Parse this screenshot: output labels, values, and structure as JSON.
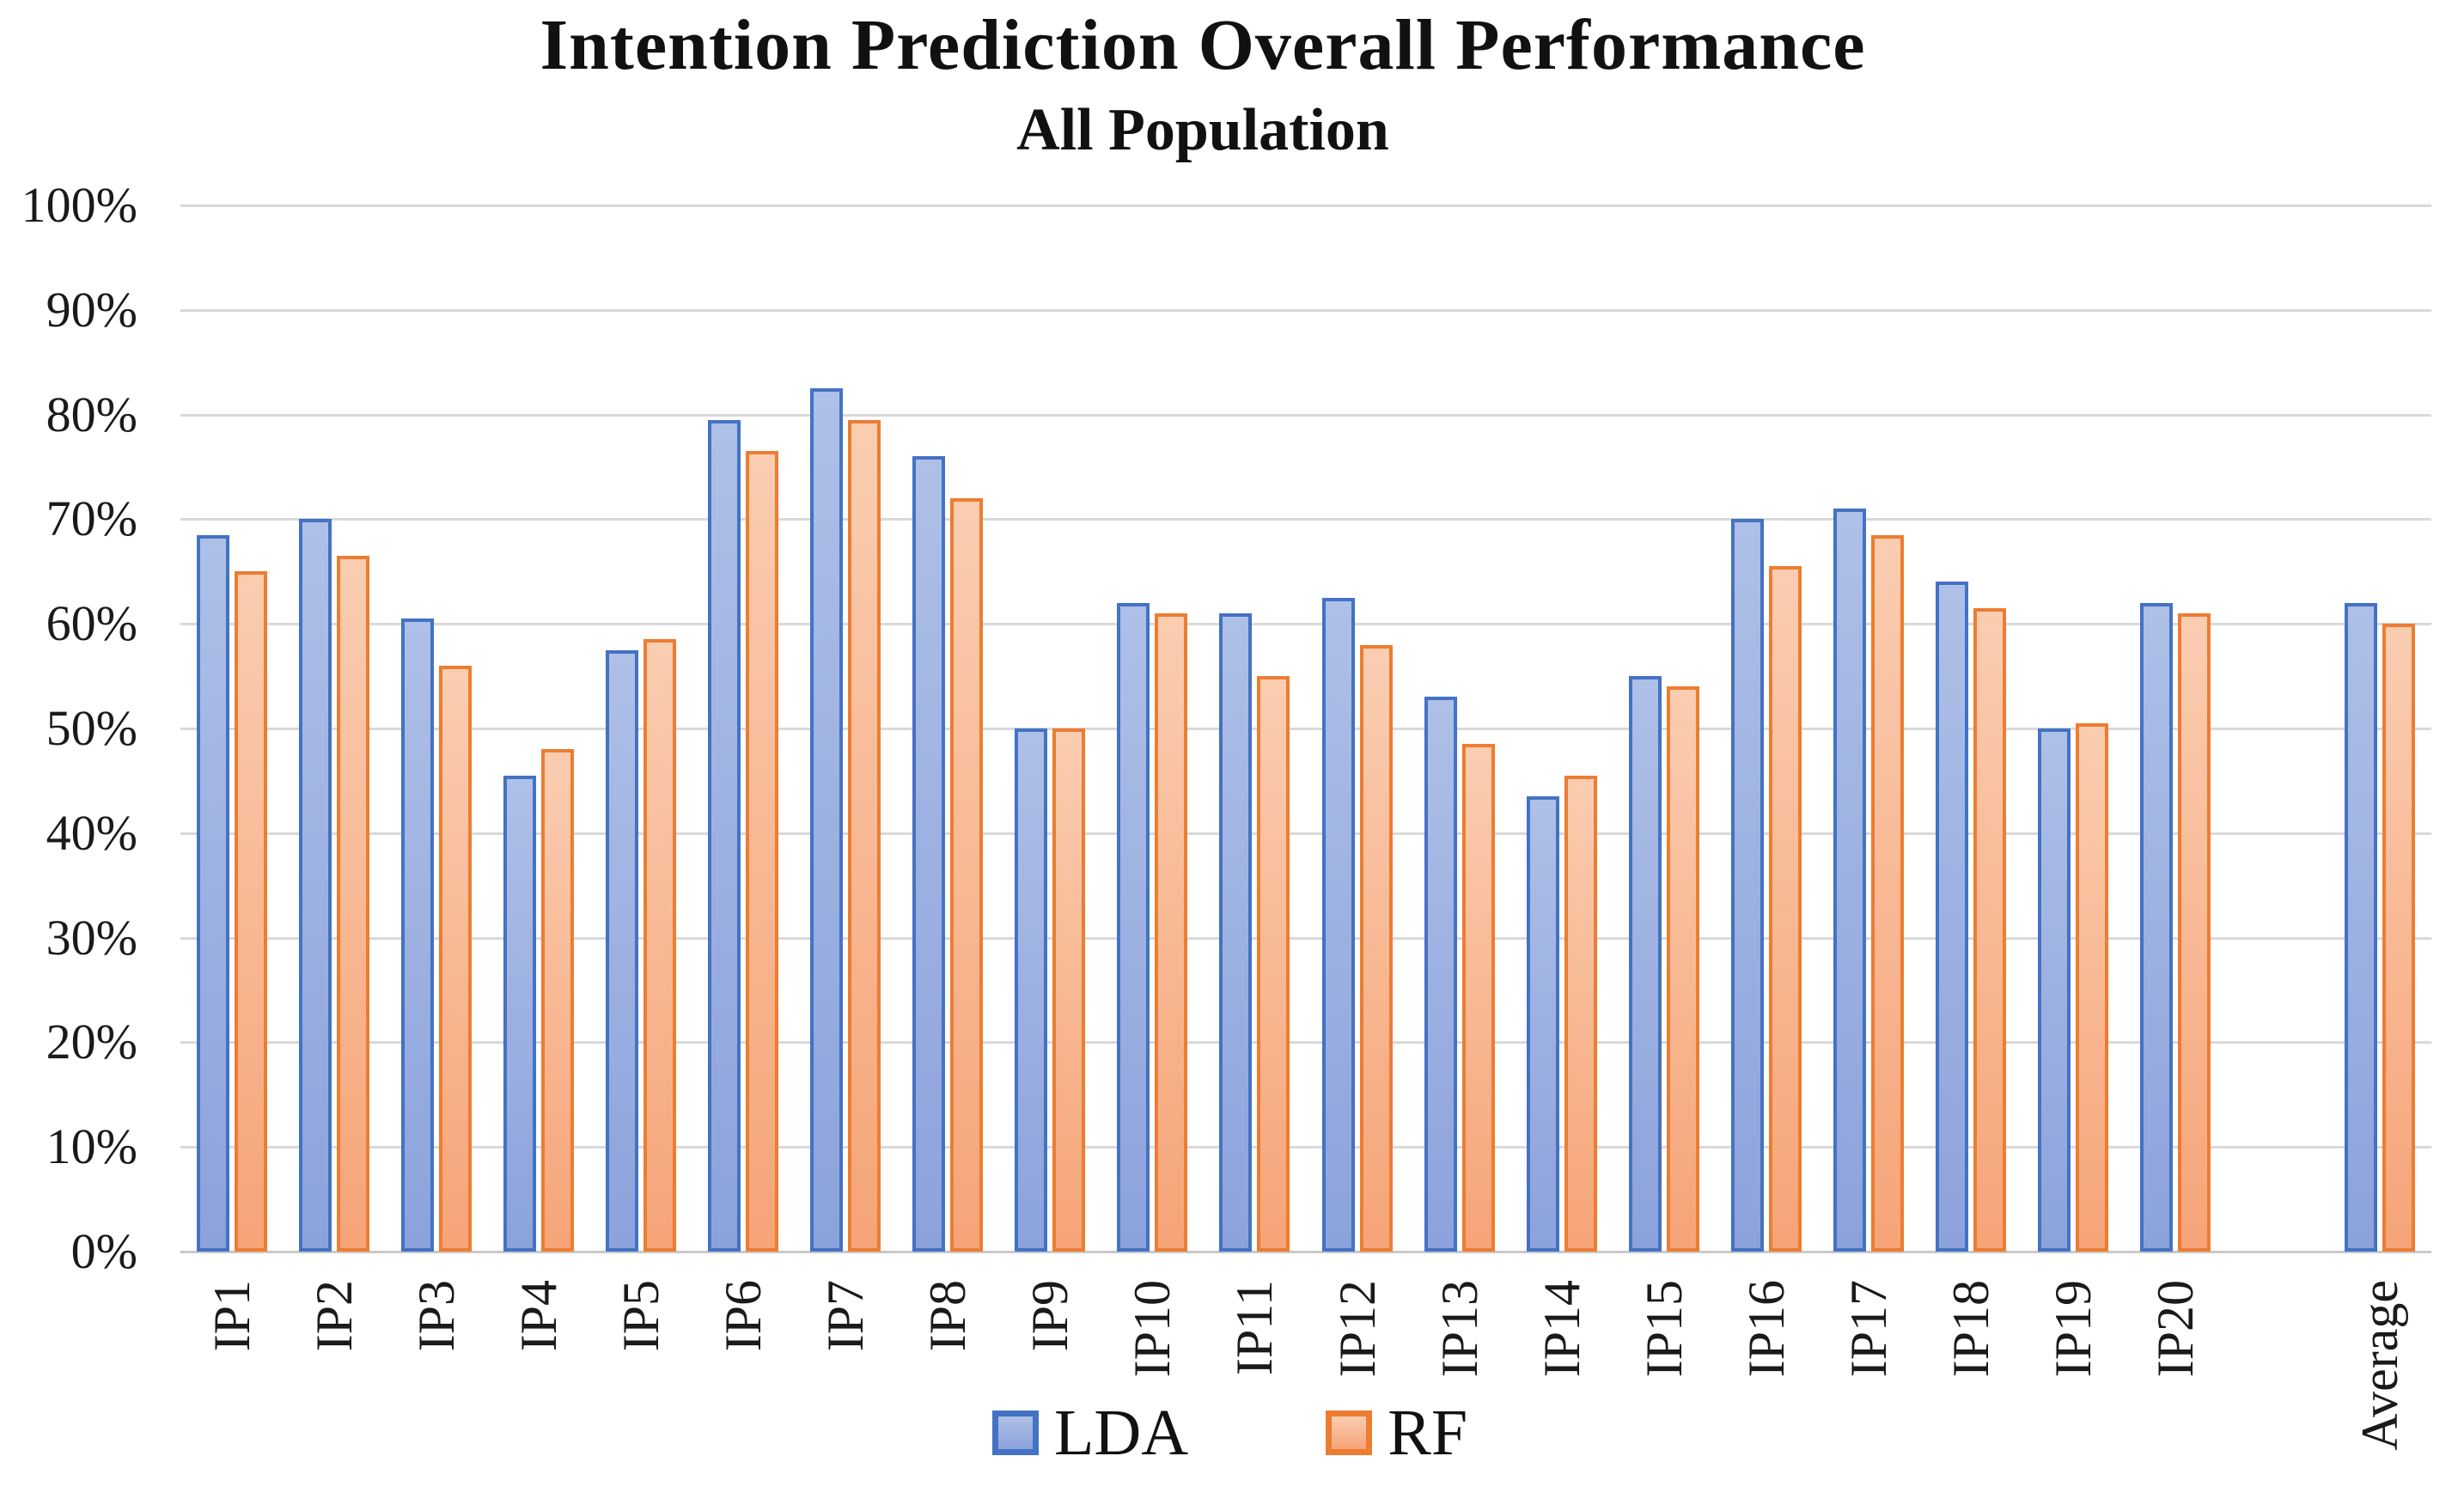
{
  "chart_data": {
    "type": "bar",
    "title": "Intention Prediction Overall Performance",
    "subtitle": "All Population",
    "xlabel": "",
    "ylabel": "",
    "unit": "%",
    "categories": [
      "IP1",
      "IP2",
      "IP3",
      "IP4",
      "IP5",
      "IP6",
      "IP7",
      "IP8",
      "IP9",
      "IP10",
      "IP11",
      "IP12",
      "IP13",
      "IP14",
      "IP15",
      "IP16",
      "IP17",
      "IP18",
      "IP19",
      "IP20",
      "Average"
    ],
    "series": [
      {
        "name": "LDA",
        "color_border": "#4472C4",
        "color_fill_top": "#AEC0E7",
        "color_fill_bottom": "#8CA2DB",
        "values": [
          68.5,
          70,
          60.5,
          45.5,
          57.5,
          79.5,
          82.5,
          76,
          50,
          62,
          61,
          62.5,
          53,
          43.5,
          55,
          70,
          71,
          64,
          50,
          62,
          62
        ]
      },
      {
        "name": "RF",
        "color_border": "#ED7D31",
        "color_fill_top": "#FACDB1",
        "color_fill_bottom": "#F6A478",
        "values": [
          65,
          66.5,
          56,
          48,
          58.5,
          76.5,
          79.5,
          72,
          50,
          61,
          55,
          58,
          48.5,
          45.5,
          54,
          65.5,
          68.5,
          61.5,
          50.5,
          61,
          60
        ]
      }
    ],
    "ylim": [
      0,
      100
    ],
    "ytick_step": 10,
    "ytick_labels": [
      "0%",
      "10%",
      "20%",
      "30%",
      "40%",
      "50%",
      "60%",
      "70%",
      "80%",
      "90%",
      "100%"
    ],
    "grid": true,
    "gridline_color": "#D9D9D9",
    "axis_line_color": "#C9C9C9",
    "legend_position": "bottom-center",
    "layout_hints": {
      "gap_before_last_category": true,
      "x_label_rotation_deg": -90
    }
  }
}
